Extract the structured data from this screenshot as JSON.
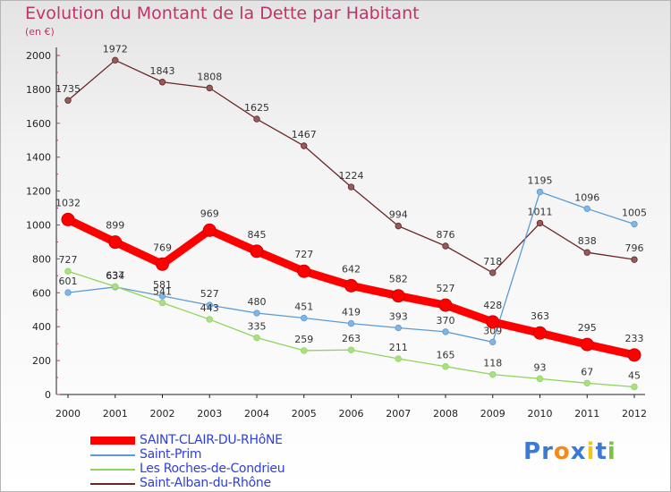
{
  "chart_data": {
    "type": "line",
    "title": "Evolution du Montant de la Dette par Habitant",
    "subtitle": "(en €)",
    "x": [
      "2000",
      "2001",
      "2002",
      "2003",
      "2004",
      "2005",
      "2006",
      "2007",
      "2008",
      "2009",
      "2010",
      "2011",
      "2012"
    ],
    "ylim": [
      0,
      2000
    ],
    "yticks": [
      0,
      200,
      400,
      600,
      800,
      1000,
      1200,
      1400,
      1600,
      1800,
      2000
    ],
    "grid": false,
    "legend_position": "bottom-left",
    "series": [
      {
        "name": "SAINT-CLAIR-DU-RHôNE",
        "color": "#ff0000",
        "values": [
          1032,
          899,
          769,
          969,
          845,
          727,
          642,
          582,
          527,
          428,
          363,
          295,
          233
        ]
      },
      {
        "name": "Saint-Prim",
        "color": "#5b9bd5",
        "values": [
          601,
          634,
          581,
          527,
          480,
          451,
          419,
          393,
          370,
          309,
          1195,
          1096,
          1005
        ]
      },
      {
        "name": "Les Roches-de-Condrieu",
        "color": "#8fd45c",
        "values": [
          727,
          637,
          541,
          443,
          335,
          259,
          263,
          211,
          165,
          118,
          93,
          67,
          45
        ]
      },
      {
        "name": "Saint-Alban-du-Rhône",
        "color": "#6b2626",
        "values": [
          1735,
          1972,
          1843,
          1808,
          1625,
          1467,
          1224,
          994,
          876,
          718,
          1011,
          838,
          796
        ]
      }
    ]
  },
  "logo": {
    "text": "Proxiti",
    "letters": [
      "P",
      "r",
      "o",
      "x",
      "i",
      "t",
      "i"
    ],
    "colors": [
      "#3a7ad5",
      "#3a7ad5",
      "#f28a1c",
      "#3a7ad5",
      "#f2c41c",
      "#3a7ad5",
      "#7cc242"
    ]
  }
}
